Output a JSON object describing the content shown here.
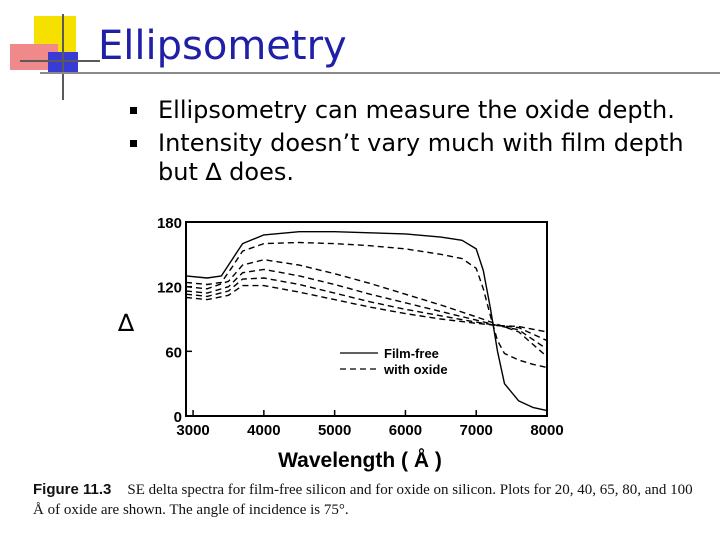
{
  "slide": {
    "title": "Ellipsometry",
    "bullets": [
      "Ellipsometry can measure the oxide depth.",
      "Intensity doesn’t vary much with film depth but ∆ does."
    ]
  },
  "caption": {
    "figure_label": "Figure 11.3",
    "text": "SE delta spectra for film-free silicon and for oxide on silicon. Plots for 20, 40, 65, 80, and 100 Å of oxide are shown. The angle of incidence is 75°."
  },
  "colors": {
    "title": "#1f1fa8",
    "deco_yellow": "#f5e000",
    "deco_red": "#f08a8a",
    "deco_blue": "#3a3ad6"
  },
  "chart_data": {
    "type": "line",
    "xlabel": "Wavelength ( Å )",
    "ylabel": "∆",
    "xlim": [
      3000,
      8000
    ],
    "ylim": [
      0,
      180
    ],
    "xticks": [
      "3000",
      "4000",
      "5000",
      "6000",
      "7000",
      "8000"
    ],
    "yticks": [
      "0",
      "60",
      "120",
      "180"
    ],
    "legend": [
      "Film-free",
      "with oxide"
    ],
    "series": [
      {
        "name": "Film-free",
        "style": "solid",
        "x": [
          2900,
          3200,
          3400,
          3550,
          3700,
          4000,
          4500,
          5000,
          5500,
          6000,
          6500,
          6800,
          7000,
          7100,
          7200,
          7300,
          7400,
          7600,
          7800,
          8000
        ],
        "y": [
          130,
          128,
          130,
          145,
          160,
          168,
          171,
          171,
          170,
          169,
          166,
          163,
          155,
          135,
          100,
          60,
          30,
          14,
          8,
          5
        ]
      },
      {
        "style": "dashed",
        "x": [
          2900,
          3200,
          3400,
          3550,
          3700,
          4000,
          4500,
          5000,
          5500,
          6000,
          6500,
          6800,
          7000,
          7100,
          7200,
          7300,
          7400,
          7600,
          7800,
          8000
        ],
        "y": [
          124,
          122,
          124,
          138,
          153,
          160,
          161,
          160,
          158,
          155,
          150,
          146,
          137,
          118,
          93,
          70,
          58,
          52,
          48,
          45
        ]
      },
      {
        "style": "dashed",
        "x": [
          2900,
          3200,
          3500,
          3700,
          4000,
          4500,
          5000,
          5500,
          6000,
          6500,
          7000,
          7300,
          7600,
          8000
        ],
        "y": [
          120,
          118,
          125,
          140,
          145,
          140,
          132,
          123,
          113,
          103,
          92,
          85,
          78,
          55
        ]
      },
      {
        "style": "dashed",
        "x": [
          2900,
          3200,
          3500,
          3700,
          4000,
          4500,
          5000,
          5500,
          6000,
          6500,
          7000,
          7300,
          7600,
          8000
        ],
        "y": [
          116,
          114,
          120,
          133,
          136,
          130,
          122,
          113,
          105,
          97,
          89,
          84,
          80,
          62
        ]
      },
      {
        "style": "dashed",
        "x": [
          2900,
          3200,
          3500,
          3700,
          4000,
          4500,
          5000,
          5500,
          6000,
          6500,
          7000,
          7300,
          7600,
          8000
        ],
        "y": [
          113,
          111,
          116,
          127,
          128,
          122,
          114,
          106,
          99,
          93,
          87,
          84,
          82,
          70
        ]
      },
      {
        "style": "dashed",
        "x": [
          2900,
          3200,
          3500,
          3700,
          4000,
          4500,
          5000,
          5500,
          6000,
          6500,
          7000,
          7300,
          7600,
          8000
        ],
        "y": [
          110,
          108,
          112,
          121,
          121,
          115,
          108,
          101,
          95,
          90,
          86,
          84,
          83,
          78
        ]
      }
    ]
  }
}
